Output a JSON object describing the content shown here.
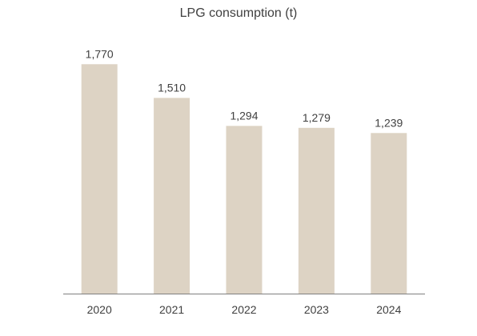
{
  "chart_data": {
    "type": "bar",
    "title": "LPG consumption (t)",
    "categories": [
      "2020",
      "2021",
      "2022",
      "2023",
      "2024"
    ],
    "values": [
      1770,
      1510,
      1294,
      1279,
      1239
    ],
    "data_labels": [
      "1,770",
      "1,510",
      "1,294",
      "1,279",
      "1,239"
    ],
    "ylim": [
      0,
      2000
    ],
    "grid": false,
    "legend": "none",
    "bar_color": "#ddd3c4",
    "axis_color": "#7f7f7f",
    "text_color": "#404040"
  }
}
